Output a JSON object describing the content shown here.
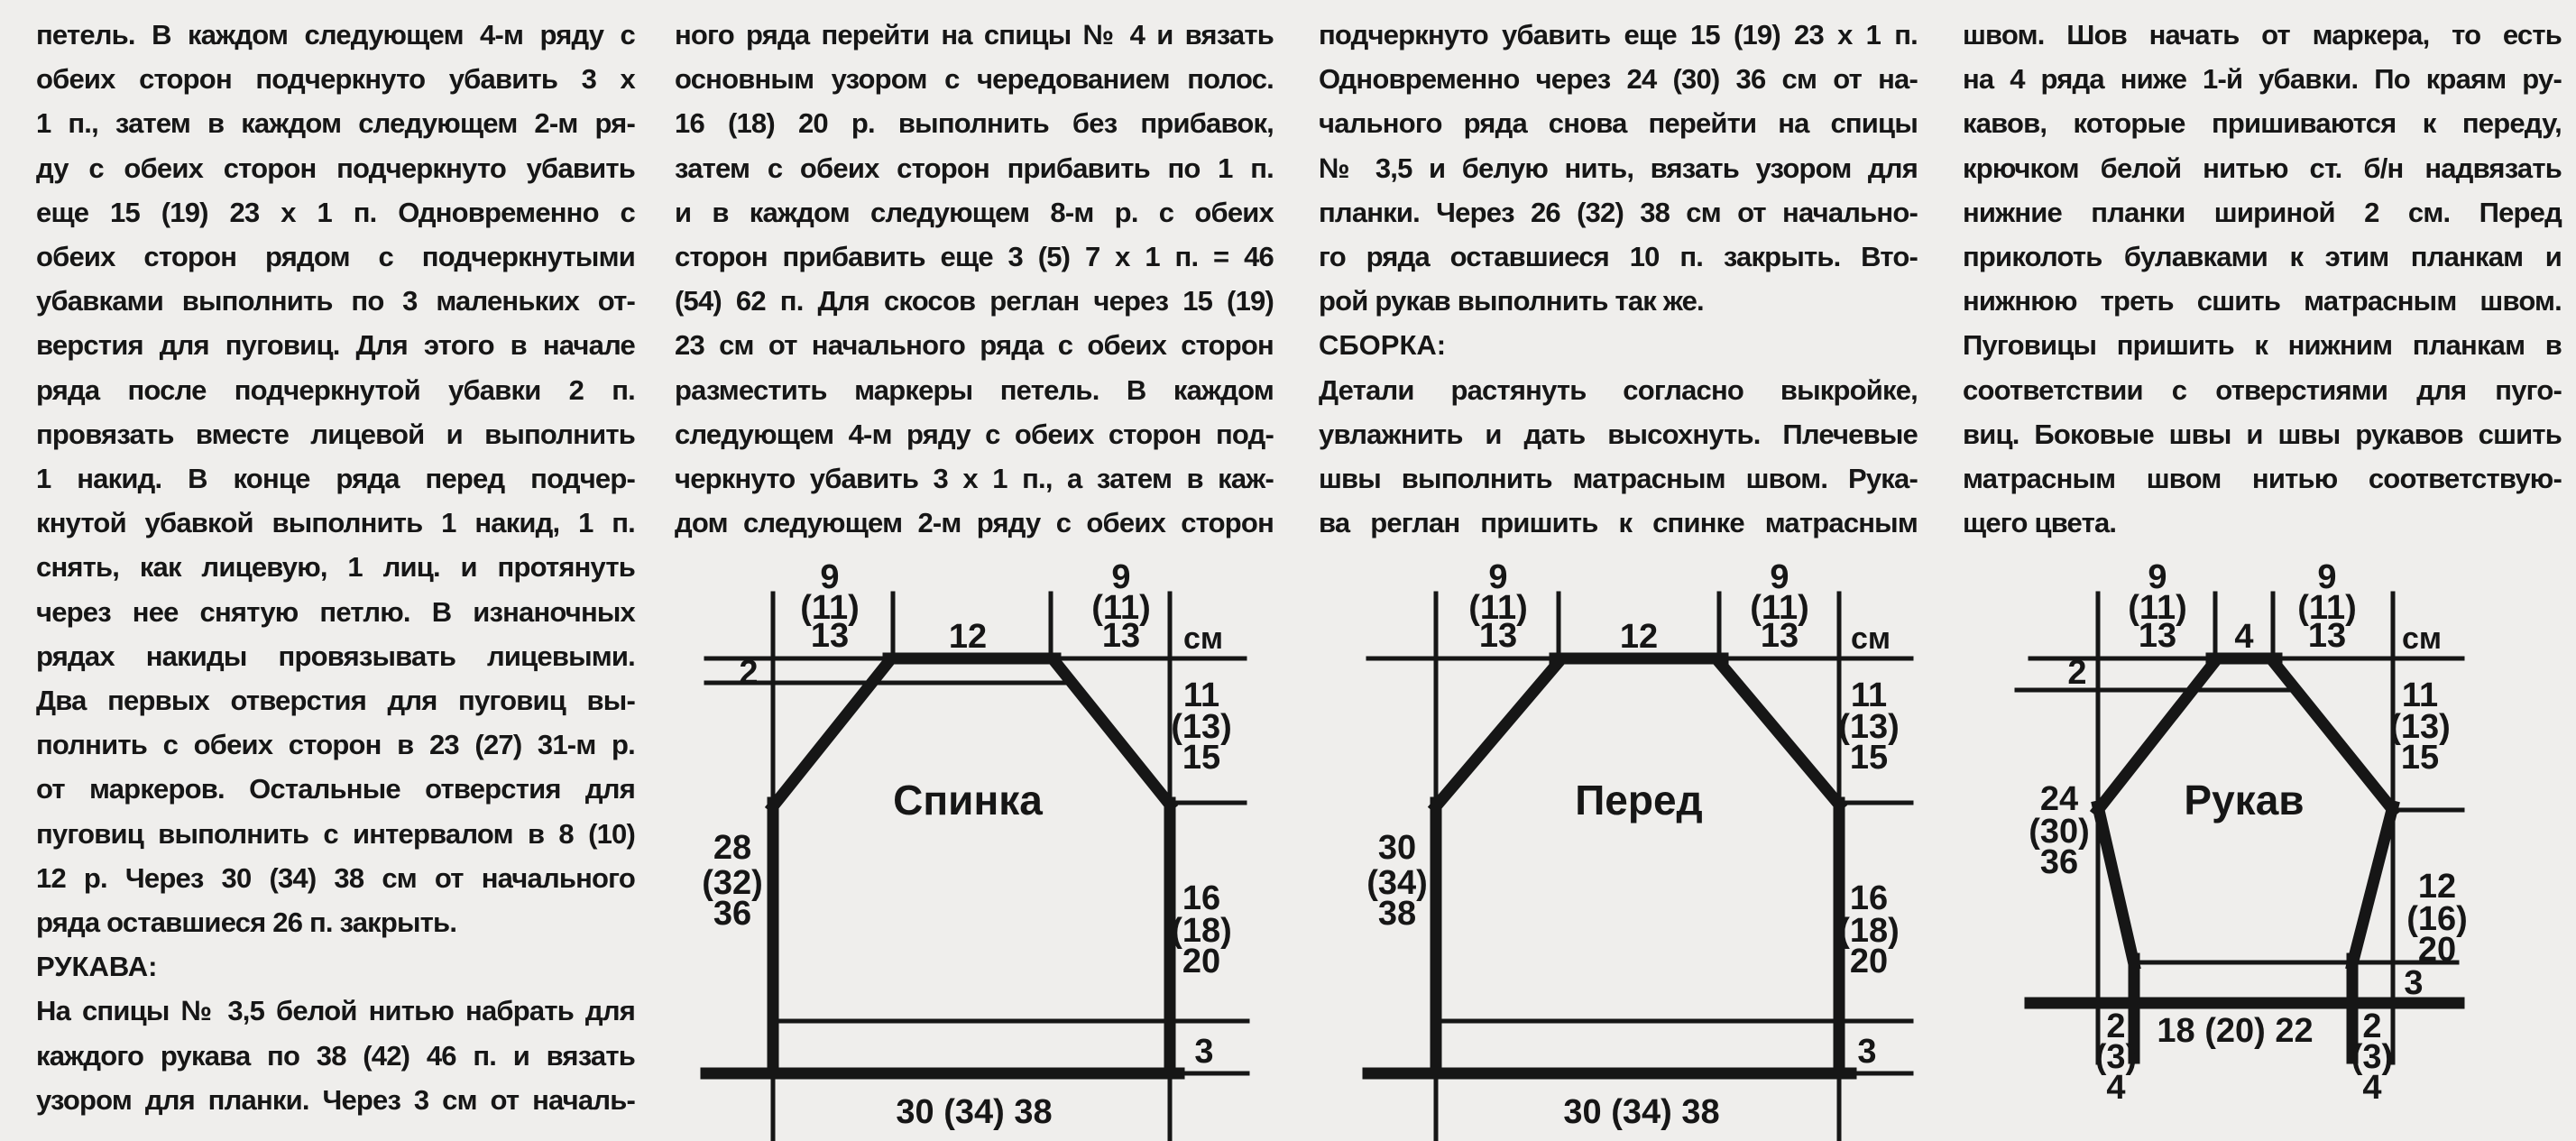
{
  "page": {
    "background": "#efeeec",
    "ink": "#161616",
    "language": "ru",
    "kind": "scanned knitting pattern page"
  },
  "columns": [
    {
      "lines": [
        {
          "t": "петель. В каждом следующем 4-м ряду с"
        },
        {
          "t": "обеих сторон подчеркнуто убавить 3 х"
        },
        {
          "t": "1 п., затем в каждом следующем 2-м ря-"
        },
        {
          "t": "ду с обеих сторон подчеркнуто убавить"
        },
        {
          "t": "еще 15 (19) 23 х 1 п. Одновременно с"
        },
        {
          "t": "обеих сторон рядом с подчеркнутыми"
        },
        {
          "t": "убавками выполнить по 3 маленьких от-"
        },
        {
          "t": "верстия для пуговиц. Для этого в начале"
        },
        {
          "t": "ряда после подчеркнутой убавки 2 п."
        },
        {
          "t": "провязать вместе лицевой и выполнить"
        },
        {
          "t": "1 накид. В конце ряда перед подчер-"
        },
        {
          "t": "кнутой убавкой выполнить 1 накид, 1 п."
        },
        {
          "t": "снять, как лицевую, 1 лиц. и протянуть"
        },
        {
          "t": "через нее снятую петлю. В изнаночных"
        },
        {
          "t": "рядах накиды провязывать лицевыми."
        },
        {
          "t": "Два первых отверстия для пуговиц вы-"
        },
        {
          "t": "полнить с обеих сторон в 23 (27) 31-м р."
        },
        {
          "t": "от маркеров. Остальные отверстия для"
        },
        {
          "t": "пуговиц выполнить с интервалом в 8 (10)"
        },
        {
          "t": "12 р. Через 30 (34) 38 см от начального"
        },
        {
          "t": "ряда оставшиеся 26 п. закрыть.",
          "e": true
        },
        {
          "t": "РУКАВА:",
          "h": true
        },
        {
          "t": "На спицы № 3,5 белой нитью набрать для"
        },
        {
          "t": "каждого рукава по 38 (42) 46 п. и вязать"
        },
        {
          "t": "узором для планки. Через 3 см от началь-"
        }
      ]
    },
    {
      "lines": [
        {
          "t": "ного ряда перейти на спицы № 4 и вязать"
        },
        {
          "t": "основным узором с чередованием полос."
        },
        {
          "t": "16 (18) 20 р. выполнить без прибавок,"
        },
        {
          "t": "затем с обеих сторон прибавить по 1 п."
        },
        {
          "t": "и в каждом следующем 8-м р. с обеих"
        },
        {
          "t": "сторон прибавить еще 3 (5) 7 х 1 п. = 46"
        },
        {
          "t": "(54) 62 п. Для скосов реглан через 15 (19)"
        },
        {
          "t": "23 см от начального ряда с обеих сторон"
        },
        {
          "t": "разместить маркеры петель. В каждом"
        },
        {
          "t": "следующем 4-м ряду с обеих сторон под-"
        },
        {
          "t": "черкнуто убавить 3 х 1 п., а затем в каж-"
        },
        {
          "t": "дом следующем 2-м ряду с обеих сторон"
        }
      ]
    },
    {
      "lines": [
        {
          "t": "подчеркнуто убавить еще 15 (19) 23 х 1 п."
        },
        {
          "t": "Одновременно через 24 (30) 36 см от на-"
        },
        {
          "t": "чального ряда снова перейти на спицы"
        },
        {
          "t": "№ 3,5 и белую нить, вязать узором для"
        },
        {
          "t": "планки. Через 26 (32) 38 см от начально-"
        },
        {
          "t": "го ряда оставшиеся 10 п. закрыть. Вто-"
        },
        {
          "t": "рой рукав выполнить так же.",
          "e": true
        },
        {
          "t": "СБОРКА:",
          "h": true
        },
        {
          "t": "Детали растянуть согласно выкройке,"
        },
        {
          "t": "увлажнить и дать высохнуть. Плечевые"
        },
        {
          "t": "швы выполнить матрасным швом. Рука-"
        },
        {
          "t": "ва реглан пришить к спинке матрасным"
        }
      ]
    },
    {
      "lines": [
        {
          "t": "швом. Шов начать от маркера, то есть"
        },
        {
          "t": "на 4 ряда ниже 1-й убавки. По краям ру-"
        },
        {
          "t": "кавов, которые пришиваются к переду,"
        },
        {
          "t": "крючком белой нитью ст. б/н надвязать"
        },
        {
          "t": "нижние планки шириной 2 см. Перед"
        },
        {
          "t": "приколоть булавками к этим планкам и"
        },
        {
          "t": "нижнюю треть сшить матрасным швом."
        },
        {
          "t": "Пуговицы пришить к нижним планкам в"
        },
        {
          "t": "соответствии с отверстиями для пуго-"
        },
        {
          "t": "виц. Боковые швы и швы рукавов сшить"
        },
        {
          "t": "матрасным швом нитью соответствую-"
        },
        {
          "t": "щего цвета.",
          "e": true
        }
      ]
    }
  ],
  "diagrams": {
    "unit": "см",
    "back": {
      "title": "Спинка",
      "shoulder_left": [
        "9",
        "(11)",
        "13"
      ],
      "neck_width": "12",
      "shoulder_right": [
        "9",
        "(11)",
        "13"
      ],
      "neck_depth": "2",
      "raglan_height": [
        "11",
        "(13)",
        "15"
      ],
      "side_height": [
        "28",
        "(32)",
        "36"
      ],
      "lower_height": [
        "16",
        "(18)",
        "20"
      ],
      "hem_height": "3",
      "bottom_width": "30 (34) 38"
    },
    "front": {
      "title": "Перед",
      "shoulder_left": [
        "9",
        "(11)",
        "13"
      ],
      "neck_width": "12",
      "shoulder_right": [
        "9",
        "(11)",
        "13"
      ],
      "raglan_height": [
        "11",
        "(13)",
        "15"
      ],
      "side_height": [
        "30",
        "(34)",
        "38"
      ],
      "lower_height": [
        "16",
        "(18)",
        "20"
      ],
      "hem_height": "3",
      "bottom_width": "30 (34) 38"
    },
    "sleeve": {
      "title": "Рукав",
      "shoulder_left": [
        "9",
        "(11)",
        "13"
      ],
      "top_width": "4",
      "shoulder_right": [
        "9",
        "(11)",
        "13"
      ],
      "neck_depth": "2",
      "raglan_height": [
        "11",
        "(13)",
        "15"
      ],
      "side_height": [
        "24",
        "(30)",
        "36"
      ],
      "lower_height": [
        "12",
        "(16)",
        "20"
      ],
      "cuff_height": "3",
      "bottom_width": "18 (20) 22",
      "bottom_ext_left": [
        "2",
        "(3)",
        "4"
      ],
      "bottom_ext_right": [
        "2",
        "(3)",
        "4"
      ]
    }
  }
}
